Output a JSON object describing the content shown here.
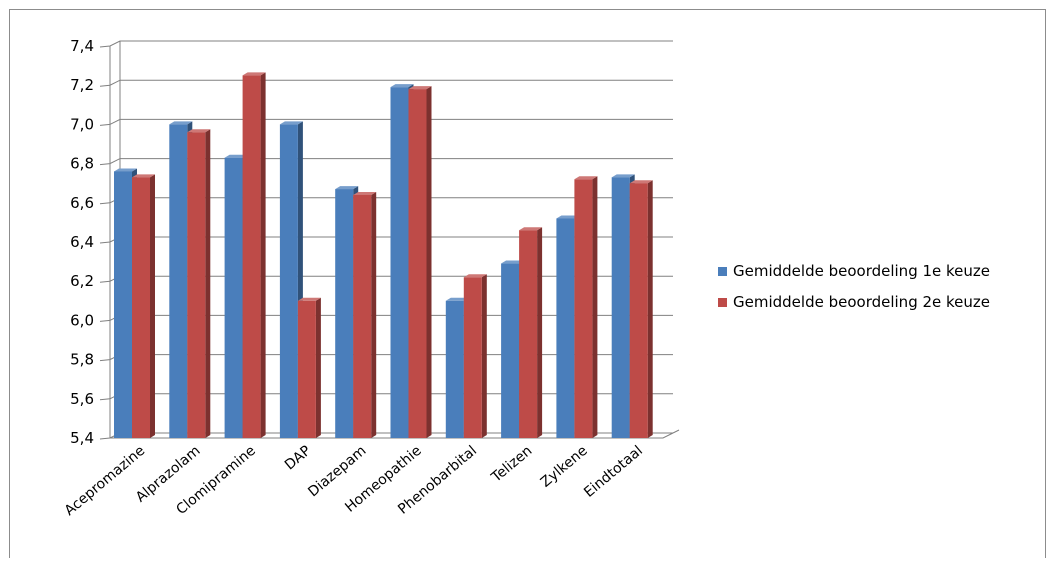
{
  "chart_data": {
    "type": "bar",
    "title": "",
    "xlabel": "",
    "ylabel": "",
    "ylim": [
      5.4,
      7.4
    ],
    "ytick_step": 0.2,
    "yticks": [
      "5,4",
      "5,6",
      "5,8",
      "6,0",
      "6,2",
      "6,4",
      "6,6",
      "6,8",
      "7,0",
      "7,2",
      "7,4"
    ],
    "grid": true,
    "legend_position": "right",
    "categories": [
      "Acepromazine",
      "Alprazolam",
      "Clomipramine",
      "DAP",
      "Diazepam",
      "Homeopathie",
      "Phenobarbital",
      "Telizen",
      "Zylkene",
      "Eindtotaal"
    ],
    "series": [
      {
        "name": "Gemiddelde beoordeling 1e keuze",
        "color": "#4a7ebb",
        "values": [
          6.76,
          7.0,
          6.83,
          7.0,
          6.67,
          7.19,
          6.1,
          6.29,
          6.52,
          6.73
        ]
      },
      {
        "name": "Gemiddelde beoordeling 2e keuze",
        "color": "#be4b48",
        "values": [
          6.73,
          6.96,
          7.25,
          6.1,
          6.64,
          7.18,
          6.22,
          6.46,
          6.72,
          6.7
        ]
      }
    ]
  }
}
